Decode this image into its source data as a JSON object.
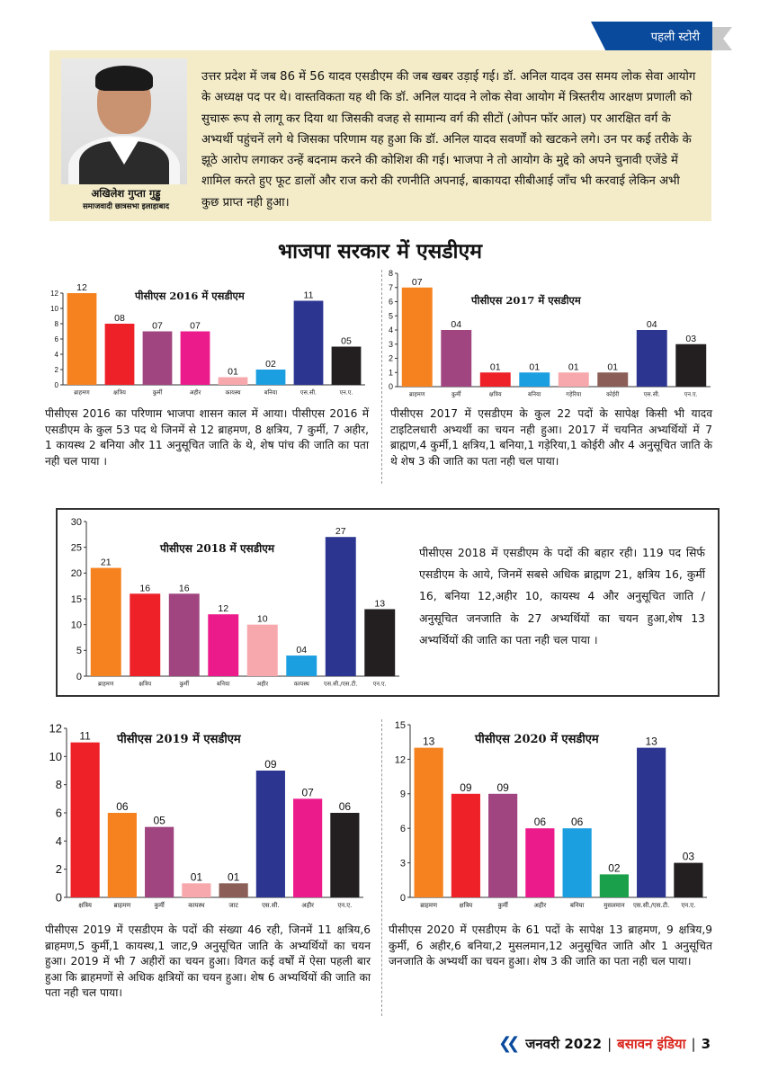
{
  "section_tag": "पहली स्टोरी",
  "quote": {
    "text": "उत्तर प्रदेश में जब 86 में 56 यादव एसडीएम की जब खबर उड़ाई गई। डॉ. अनिल यादव उस समय लोक सेवा आयोग के अध्यक्ष पद पर थे। वास्तविकता यह थी कि डॉ. अनिल यादव ने लोक सेवा आयोग में त्रिस्तरीय आरक्षण प्रणाली को सुचारू रूप से लागू कर दिया था जिसकी वजह से सामान्य वर्ग की सीटों (ओपन फॉर आल) पर आरक्षित वर्ग के अभ्यर्थी पहुंचनें लगे थे जिसका परिणाम यह हुआ कि डॉ. अनिल यादव सवर्णों को खटकने लगे। उन पर कई तरीके के झूठे आरोप लगाकर उन्हें बदनाम करने की कोशिश की गई। भाजपा ने तो आयोग के मुद्दे को अपने चुनावी एजेंडे में शामिल करते हुए फूट डालों और राज करो की रणनीति अपनाई, बाकायदा सीबीआई जाँच भी करवाई लेकिन अभी कुछ प्राप्त नही हुआ।",
    "author_name": "अखिलेश गुप्ता गुड्डु",
    "author_org": "समाजवादी छात्रसभा इलाहाबाद"
  },
  "headline": "भाजपा सरकार में एसडीएम",
  "paragraphs": {
    "p2016": "पीसीएस 2016 का परिणाम भाजपा शासन काल में आया। पीसीएस 2016 में एसडीएम के कुल 53 पद थे जिनमें से 12 ब्राहमण, 8 क्षत्रिय, 7 कुर्मी, 7 अहीर, 1 कायस्थ 2 बनिया और 11 अनुसूचित जाति के थे, शेष पांच की जाति का पता नही चल पाया ।",
    "p2017": "पीसीएस 2017 में एसडीएम के कुल 22 पदों के सापेक्ष किसी भी यादव टाइटिलधारी अभ्यर्थी का चयन नही हुआ। 2017 में चयनित अभ्यर्थियों में 7 ब्राह्मण,4 कुर्मी,1 क्षत्रिय,1 बनिया,1 गड़ेरिया,1 कोईरी और 4 अनुसूचित जाति के थे शेष 3 की जाति का पता नही चल पाया।",
    "p2018": "पीसीएस 2018 में एसडीएम के पदों की बहार रही। 119 पद सिर्फ एसडीएम के आये, जिनमें सबसे अधिक ब्राह्मण 21, क्षत्रिय 16, कुर्मी 16, बनिया 12,अहीर 10, कायस्थ 4 और अनुसूचित जाति / अनुसूचित जनजाति के 27 अभ्यर्थियों का चयन हुआ,शेष 13 अभ्यर्थियों की जाति का पता नही चल पाया ।",
    "p2019": "पीसीएस 2019 में एसडीएम के पदों की संख्या 46 रही, जिनमें 11 क्षत्रिय,6 ब्राहमण,5 कुर्मी,1 कायस्थ,1 जाट,9 अनुसूचित जाति के अभ्यर्थियों का चयन हुआ। 2019 में भी 7 अहीरों का चयन हुआ। विगत कई वर्षों में ऐसा पहली बार हुआ कि ब्राहमणों से अधिक क्षत्रियों का चयन हुआ। शेष 6 अभ्यर्थियों की जाति का पता नही चल पाया।",
    "p2020": "पीसीएस 2020 में एसडीएम के 61 पदों के सापेक्ष 13 ब्राहमण, 9 क्षत्रिय,9 कुर्मी, 6 अहीर,6 बनिया,2 मुसलमान,12 अनुसूचित जाति और 1 अनुसूचित जनजाति के अभ्यर्थी का चयन हुआ। शेष 3 की जाति का पता नही चल पाया।"
  },
  "chart_data": [
    {
      "id": "c2016",
      "type": "bar",
      "title": "पीसीएस 2016 में एसडीएम",
      "categories": [
        "ब्राहमण",
        "क्षत्रिय",
        "कुर्मी",
        "अहीर",
        "कायस्थ",
        "बनिया",
        "एस.सी.",
        "एन.ए."
      ],
      "values": [
        12,
        8,
        7,
        7,
        1,
        2,
        11,
        5
      ],
      "labels": [
        "12",
        "08",
        "07",
        "07",
        "01",
        "02",
        "11",
        "05"
      ],
      "colors": [
        "#f5821f",
        "#ee2129",
        "#a0457f",
        "#ec1b8c",
        "#f7a8ad",
        "#1b9fe0",
        "#2c3691",
        "#231f20"
      ],
      "ylim": [
        0,
        12
      ],
      "yticks": [
        0,
        2,
        4,
        6,
        8,
        10,
        12
      ]
    },
    {
      "id": "c2017",
      "type": "bar",
      "title": "पीसीएस 2017 में एसडीएम",
      "categories": [
        "ब्राहमण",
        "कुर्मी",
        "क्षत्रिय",
        "बनिया",
        "गड़ेरिया",
        "कोईरी",
        "एस.सी.",
        "एन.ए."
      ],
      "values": [
        7,
        4,
        1,
        1,
        1,
        1,
        4,
        3
      ],
      "labels": [
        "07",
        "04",
        "01",
        "01",
        "01",
        "01",
        "04",
        "03"
      ],
      "colors": [
        "#f5821f",
        "#a0457f",
        "#ee2129",
        "#1b9fe0",
        "#f7a8ad",
        "#8b5e57",
        "#2c3691",
        "#231f20"
      ],
      "ylim": [
        0,
        8
      ],
      "yticks": [
        0,
        1,
        2,
        3,
        4,
        5,
        6,
        7,
        8
      ]
    },
    {
      "id": "c2018",
      "type": "bar",
      "title": "पीसीएस 2018 में एसडीएम",
      "categories": [
        "ब्राहमण",
        "क्षत्रिय",
        "कुर्मी",
        "बनिया",
        "अहीर",
        "कायस्थ",
        "एस.सी./एस.टी.",
        "एन.ए."
      ],
      "values": [
        21,
        16,
        16,
        12,
        10,
        4,
        27,
        13
      ],
      "labels": [
        "21",
        "16",
        "16",
        "12",
        "10",
        "04",
        "27",
        "13"
      ],
      "colors": [
        "#f5821f",
        "#ee2129",
        "#a0457f",
        "#ec1b8c",
        "#f7a8ad",
        "#1b9fe0",
        "#2c3691",
        "#231f20"
      ],
      "ylim": [
        0,
        30
      ],
      "yticks": [
        0,
        5,
        10,
        15,
        20,
        25,
        30
      ]
    },
    {
      "id": "c2019",
      "type": "bar",
      "title": "पीसीएस 2019 में एसडीएम",
      "categories": [
        "क्षत्रिय",
        "ब्राहमण",
        "कुर्मी",
        "कायस्थ",
        "जाट",
        "एस.सी.",
        "अहीर",
        "एन.ए."
      ],
      "values": [
        11,
        6,
        5,
        1,
        1,
        9,
        7,
        6
      ],
      "labels": [
        "11",
        "06",
        "05",
        "01",
        "01",
        "09",
        "07",
        "06"
      ],
      "colors": [
        "#ee2129",
        "#f5821f",
        "#a0457f",
        "#f7a8ad",
        "#8b5e57",
        "#2c3691",
        "#ec1b8c",
        "#231f20"
      ],
      "ylim": [
        0,
        12
      ],
      "yticks": [
        0,
        2,
        4,
        6,
        8,
        10,
        12
      ]
    },
    {
      "id": "c2020",
      "type": "bar",
      "title": "पीसीएस 2020 में एसडीएम",
      "categories": [
        "ब्राहमण",
        "क्षत्रिय",
        "कुर्मी",
        "अहीर",
        "बनिया",
        "मुसलमान",
        "एस.सी./एस.टी.",
        "एन.ए."
      ],
      "values": [
        13,
        9,
        9,
        6,
        6,
        2,
        13,
        3
      ],
      "labels": [
        "13",
        "09",
        "09",
        "06",
        "06",
        "02",
        "13",
        "03"
      ],
      "colors": [
        "#f5821f",
        "#ee2129",
        "#a0457f",
        "#ec1b8c",
        "#1b9fe0",
        "#1aa04a",
        "#2c3691",
        "#231f20"
      ],
      "ylim": [
        0,
        15
      ],
      "yticks": [
        0,
        3,
        6,
        9,
        12,
        15
      ]
    }
  ],
  "footer": {
    "month": "जनवरी 2022",
    "magazine": "बसावन इंडिया",
    "page": "3",
    "separator": "|"
  }
}
